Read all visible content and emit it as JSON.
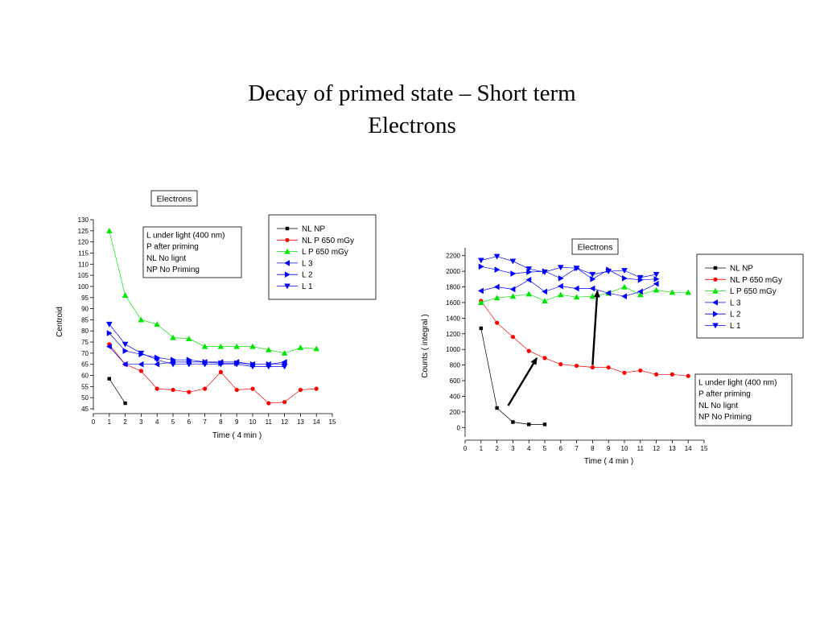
{
  "slide": {
    "title_line1": "Decay of primed state – Short term",
    "title_line2": "Electrons"
  },
  "colors": {
    "black": "#000000",
    "red": "#ff0000",
    "green": "#00e600",
    "blue": "#0000ff",
    "arrow": "#000000"
  },
  "chart_data": [
    {
      "type": "scatter",
      "title": "Electrons",
      "xlabel": "Time ( 4 min )",
      "ylabel": "Centroid",
      "xlim": [
        0,
        15
      ],
      "ylim": [
        45,
        130
      ],
      "xticks": [
        "0",
        "1",
        "2",
        "3",
        "4",
        "5",
        "6",
        "7",
        "8",
        "9",
        "10",
        "11",
        "12",
        "13",
        "14",
        "15"
      ],
      "yticks": [
        "45",
        "50",
        "55",
        "60",
        "65",
        "70",
        "75",
        "80",
        "85",
        "90",
        "95",
        "100",
        "105",
        "110",
        "115",
        "120",
        "125",
        "130"
      ],
      "grid": false,
      "legend_position": "top-right",
      "note_lines": [
        "L under light (400 nm)",
        "P after priming",
        "NL No lignt",
        "NP No Priming"
      ],
      "series": [
        {
          "name": "NL NP",
          "color": "#000000",
          "marker": "square",
          "x": [
            1,
            2
          ],
          "y": [
            58.5,
            47.5
          ]
        },
        {
          "name": "NL P 650 mGy",
          "color": "#ff0000",
          "marker": "circle",
          "x": [
            1,
            2,
            3,
            4,
            5,
            6,
            7,
            8,
            9,
            10,
            11,
            12,
            13,
            14
          ],
          "y": [
            74,
            65,
            62,
            54,
            53.5,
            52.5,
            54,
            61.5,
            53.5,
            54,
            47.5,
            48,
            53.5,
            54
          ]
        },
        {
          "name": "L P 650 mGy",
          "color": "#00e600",
          "marker": "triangle-up",
          "x": [
            1,
            2,
            3,
            4,
            5,
            6,
            7,
            8,
            9,
            10,
            11,
            12,
            13,
            14
          ],
          "y": [
            125,
            96,
            85,
            83,
            77,
            76.5,
            73,
            73,
            73,
            73,
            71.5,
            70,
            72.5,
            72
          ]
        },
        {
          "name": "L 3",
          "color": "#0000ff",
          "marker": "triangle-left",
          "x": [
            1,
            2,
            3,
            4,
            5,
            6,
            7,
            8,
            9,
            10,
            11,
            12
          ],
          "y": [
            73,
            65,
            65,
            65,
            66,
            66,
            66,
            66,
            66,
            65,
            65,
            66
          ]
        },
        {
          "name": "L 2",
          "color": "#0000ff",
          "marker": "triangle-right",
          "x": [
            1,
            2,
            3,
            4,
            5,
            6,
            7,
            8,
            9,
            10,
            11,
            12
          ],
          "y": [
            79,
            71,
            69.5,
            68,
            67,
            67,
            66,
            65.5,
            65.5,
            65,
            65,
            65
          ]
        },
        {
          "name": "L 1",
          "color": "#0000ff",
          "marker": "triangle-down",
          "x": [
            1,
            2,
            3,
            4,
            5,
            6,
            7,
            8,
            9,
            10,
            11,
            12
          ],
          "y": [
            83,
            74,
            70,
            67,
            65,
            65,
            65,
            65,
            65,
            64,
            64,
            64
          ]
        }
      ]
    },
    {
      "type": "scatter",
      "title": "Electrons",
      "xlabel": "Time ( 4 min )",
      "ylabel": "Counts ( integral )",
      "xlim": [
        0,
        15
      ],
      "ylim": [
        -100,
        2300
      ],
      "xticks": [
        "0",
        "1",
        "2",
        "3",
        "4",
        "5",
        "6",
        "7",
        "8",
        "9",
        "10",
        "11",
        "12",
        "13",
        "14",
        "15"
      ],
      "yticks": [
        "0",
        "200",
        "400",
        "600",
        "800",
        "1000",
        "1200",
        "1400",
        "1600",
        "1800",
        "2000",
        "2200"
      ],
      "grid": false,
      "legend_position": "top-right",
      "note_lines": [
        "L under light (400 nm)",
        "P after priming",
        "NL No lignt",
        "NP No Priming"
      ],
      "series": [
        {
          "name": "NL NP",
          "color": "#000000",
          "marker": "square",
          "x": [
            1,
            2,
            3,
            4,
            5
          ],
          "y": [
            1270,
            250,
            70,
            40,
            40
          ]
        },
        {
          "name": "NL P 650 mGy",
          "color": "#ff0000",
          "marker": "circle",
          "x": [
            1,
            2,
            3,
            4,
            5,
            6,
            7,
            8,
            9,
            10,
            11,
            12,
            13,
            14
          ],
          "y": [
            1620,
            1340,
            1160,
            980,
            890,
            810,
            790,
            770,
            770,
            700,
            730,
            680,
            680,
            660
          ]
        },
        {
          "name": "L P 650 mGy",
          "color": "#00e600",
          "marker": "triangle-up",
          "x": [
            1,
            2,
            3,
            4,
            5,
            6,
            7,
            8,
            9,
            10,
            11,
            12,
            13,
            14
          ],
          "y": [
            1600,
            1660,
            1680,
            1710,
            1620,
            1700,
            1670,
            1680,
            1720,
            1800,
            1700,
            1760,
            1730,
            1730
          ]
        },
        {
          "name": "L 3",
          "color": "#0000ff",
          "marker": "triangle-left",
          "x": [
            1,
            2,
            3,
            4,
            5,
            6,
            7,
            8,
            9,
            10,
            11,
            12
          ],
          "y": [
            1750,
            1800,
            1770,
            1890,
            1740,
            1810,
            1780,
            1780,
            1720,
            1680,
            1740,
            1840
          ]
        },
        {
          "name": "L 2",
          "color": "#0000ff",
          "marker": "triangle-right",
          "x": [
            1,
            2,
            3,
            4,
            5,
            6,
            7,
            8,
            9,
            10,
            11,
            12
          ],
          "y": [
            2060,
            2020,
            1970,
            1990,
            2000,
            1910,
            2040,
            1900,
            2020,
            1910,
            1890,
            1900
          ]
        },
        {
          "name": "L 1",
          "color": "#0000ff",
          "marker": "triangle-down",
          "x": [
            1,
            2,
            3,
            4,
            5,
            6,
            7,
            8,
            9,
            10,
            11,
            12
          ],
          "y": [
            2140,
            2190,
            2130,
            2030,
            1990,
            2050,
            2040,
            1960,
            2000,
            2010,
            1920,
            1960
          ]
        }
      ],
      "arrows": [
        {
          "from": [
            2.7,
            280
          ],
          "to": [
            4.5,
            890
          ]
        },
        {
          "from": [
            8.0,
            800
          ],
          "to": [
            8.3,
            1750
          ]
        }
      ]
    }
  ]
}
